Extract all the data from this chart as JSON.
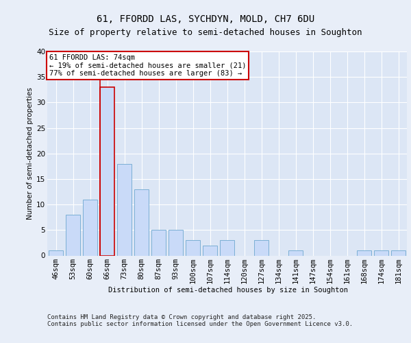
{
  "title1": "61, FFORDD LAS, SYCHDYN, MOLD, CH7 6DU",
  "title2": "Size of property relative to semi-detached houses in Soughton",
  "xlabel": "Distribution of semi-detached houses by size in Soughton",
  "ylabel": "Number of semi-detached properties",
  "categories": [
    "46sqm",
    "53sqm",
    "60sqm",
    "66sqm",
    "73sqm",
    "80sqm",
    "87sqm",
    "93sqm",
    "100sqm",
    "107sqm",
    "114sqm",
    "120sqm",
    "127sqm",
    "134sqm",
    "141sqm",
    "147sqm",
    "154sqm",
    "161sqm",
    "168sqm",
    "174sqm",
    "181sqm"
  ],
  "values": [
    1,
    8,
    11,
    33,
    18,
    13,
    5,
    5,
    3,
    2,
    3,
    0,
    3,
    0,
    1,
    0,
    0,
    0,
    1,
    1,
    1
  ],
  "highlight_index": 3,
  "bar_color": "#c9daf8",
  "bar_edge_color": "#7bafd4",
  "highlight_bar_edge_color": "#cc0000",
  "vline_color": "#cc0000",
  "annotation_box_color": "#cc0000",
  "annotation_text": "61 FFORDD LAS: 74sqm\n← 19% of semi-detached houses are smaller (21)\n77% of semi-detached houses are larger (83) →",
  "ylim": [
    0,
    40
  ],
  "yticks": [
    0,
    5,
    10,
    15,
    20,
    25,
    30,
    35,
    40
  ],
  "footer": "Contains HM Land Registry data © Crown copyright and database right 2025.\nContains public sector information licensed under the Open Government Licence v3.0.",
  "bg_color": "#e8eef8",
  "plot_bg_color": "#dce6f5",
  "grid_color": "#ffffff",
  "title1_fontsize": 10,
  "title2_fontsize": 9,
  "axis_label_fontsize": 7.5,
  "tick_fontsize": 7.5,
  "annotation_fontsize": 7.5,
  "footer_fontsize": 6.5,
  "ylabel_fontsize": 7.5
}
